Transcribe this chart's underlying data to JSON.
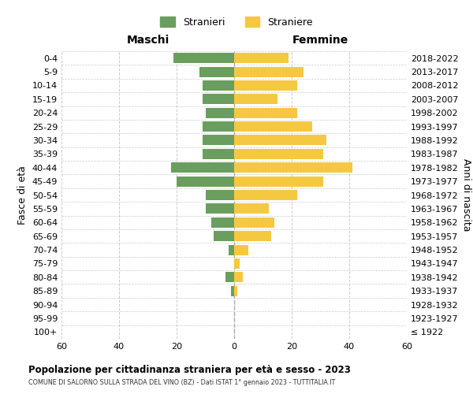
{
  "age_groups": [
    "0-4",
    "5-9",
    "10-14",
    "15-19",
    "20-24",
    "25-29",
    "30-34",
    "35-39",
    "40-44",
    "45-49",
    "50-54",
    "55-59",
    "60-64",
    "65-69",
    "70-74",
    "75-79",
    "80-84",
    "85-89",
    "90-94",
    "95-99",
    "100+"
  ],
  "birth_years": [
    "2018-2022",
    "2013-2017",
    "2008-2012",
    "2003-2007",
    "1998-2002",
    "1993-1997",
    "1988-1992",
    "1983-1987",
    "1978-1982",
    "1973-1977",
    "1968-1972",
    "1963-1967",
    "1958-1962",
    "1953-1957",
    "1948-1952",
    "1943-1947",
    "1938-1942",
    "1933-1937",
    "1928-1932",
    "1923-1927",
    "≤ 1922"
  ],
  "males": [
    21,
    12,
    11,
    11,
    10,
    11,
    11,
    11,
    22,
    20,
    10,
    10,
    8,
    7,
    2,
    0,
    3,
    1,
    0,
    0,
    0
  ],
  "females": [
    19,
    24,
    22,
    15,
    22,
    27,
    32,
    31,
    41,
    31,
    22,
    12,
    14,
    13,
    5,
    2,
    3,
    1,
    0,
    0,
    0
  ],
  "male_color": "#6a9e5e",
  "female_color": "#f5c842",
  "title": "Popolazione per cittadinanza straniera per età e sesso - 2023",
  "subtitle": "COMUNE DI SALORNO SULLA STRADA DEL VINO (BZ) - Dati ISTAT 1° gennaio 2023 - TUTTITALIA.IT",
  "legend_male": "Stranieri",
  "legend_female": "Straniere",
  "xlabel_left": "Maschi",
  "xlabel_right": "Femmine",
  "ylabel_left": "Fasce di età",
  "ylabel_right": "Anni di nascita",
  "xlim": 60,
  "background_color": "#ffffff",
  "grid_color": "#cccccc"
}
